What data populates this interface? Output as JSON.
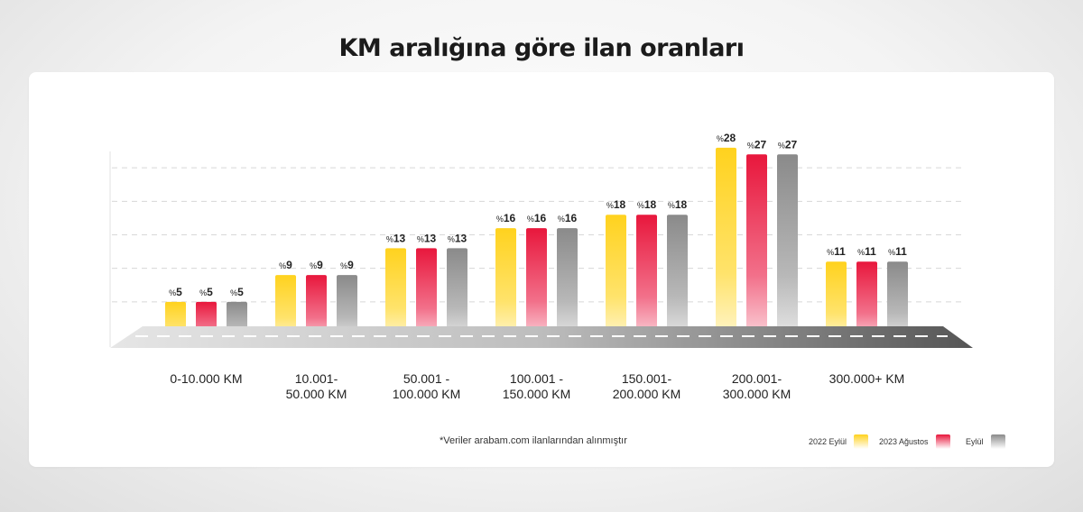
{
  "title": "KM aralığına göre ilan oranları",
  "footnote": "*Veriler arabam.com ilanlarından alınmıştır",
  "colors": {
    "yellow": "#FFD21E",
    "red": "#E8173C",
    "gray": "#8A8A8A"
  },
  "chart_data": {
    "type": "bar",
    "title": "KM aralığına göre ilan oranları",
    "xlabel": "",
    "ylabel": "",
    "ylim": [
      0,
      30
    ],
    "grid": true,
    "legend_position": "bottom-right",
    "value_prefix": "%",
    "categories": [
      "0-10.000 KM",
      "10.001-\n50.000 KM",
      "50.001 -\n100.000 KM",
      "100.001 -\n150.000 KM",
      "150.001-\n200.000 KM",
      "200.001-\n300.000 KM",
      "300.000+ KM"
    ],
    "series": [
      {
        "name": "2022 Eylül",
        "color": "#FFD21E",
        "values": [
          5,
          9,
          13,
          16,
          18,
          28,
          11
        ]
      },
      {
        "name": "2023 Ağustos",
        "color": "#E8173C",
        "values": [
          5,
          9,
          13,
          16,
          18,
          27,
          11
        ]
      },
      {
        "name": "Eylül",
        "color": "#8A8A8A",
        "values": [
          5,
          9,
          13,
          16,
          18,
          27,
          11
        ]
      }
    ]
  }
}
